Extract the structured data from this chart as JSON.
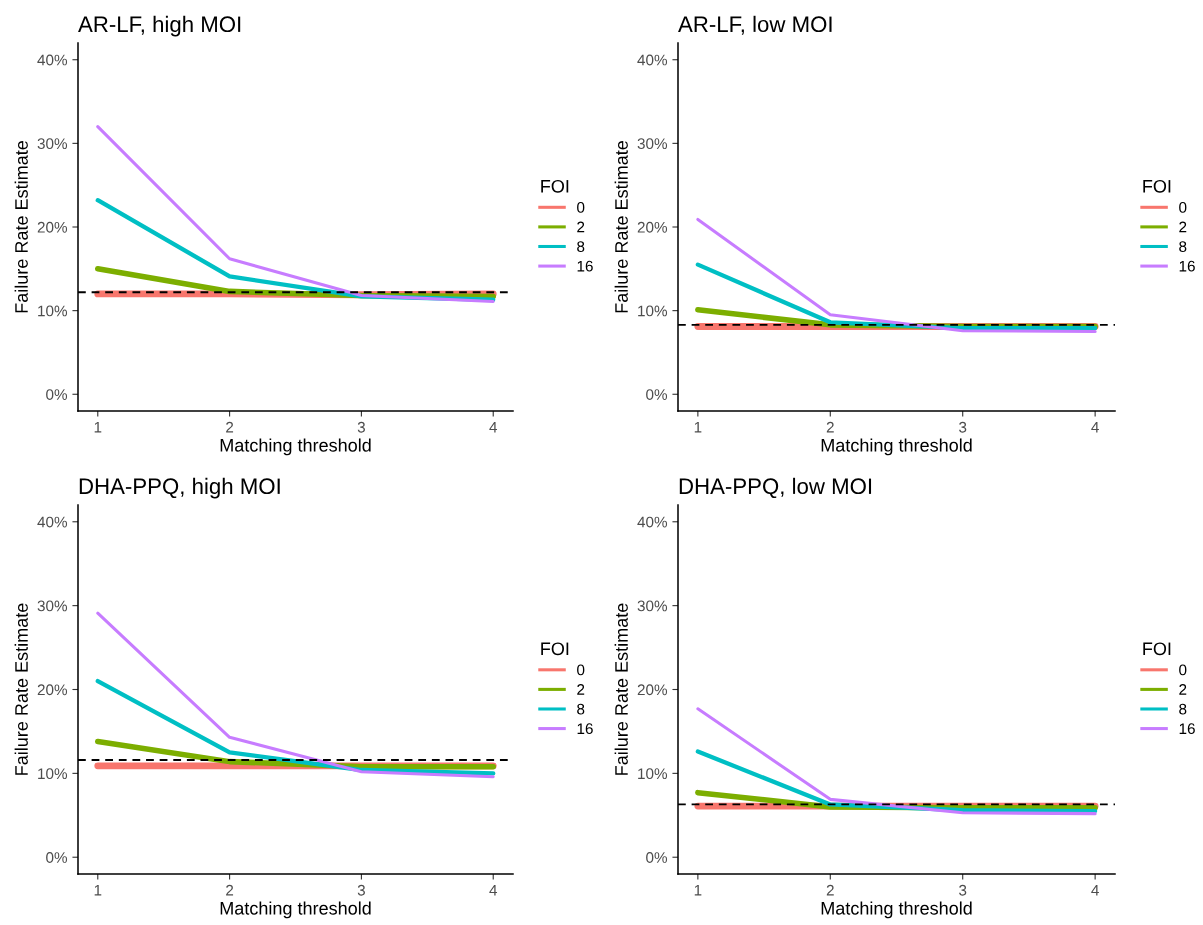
{
  "chart_data": [
    {
      "type": "line",
      "title": "AR-LF, high MOI",
      "xlabel": "Matching threshold",
      "ylabel": "Failure Rate Estimate",
      "legend_title": "FOI",
      "legend": "right",
      "grid": false,
      "x": [
        1,
        2,
        3,
        4
      ],
      "xlim": [
        0.85,
        4.15
      ],
      "xticks": [
        1,
        2,
        3,
        4
      ],
      "ylim": [
        -2,
        42
      ],
      "yticks": [
        {
          "value": 0,
          "label": "0%"
        },
        {
          "value": 10,
          "label": "10%"
        },
        {
          "value": 20,
          "label": "20%"
        },
        {
          "value": 30,
          "label": "30%"
        },
        {
          "value": 40,
          "label": "40%"
        }
      ],
      "series": [
        {
          "name": "0",
          "color": "#f8766d",
          "values": [
            12.0,
            12.0,
            11.9,
            12.0
          ]
        },
        {
          "name": "2",
          "color": "#7cae00",
          "values": [
            15.0,
            12.3,
            11.8,
            11.7
          ]
        },
        {
          "name": "8",
          "color": "#00bfc4",
          "values": [
            23.2,
            14.1,
            11.7,
            11.3
          ]
        },
        {
          "name": "16",
          "color": "#c77cff",
          "values": [
            32.0,
            16.2,
            11.8,
            11.1
          ]
        }
      ],
      "ref_lines": [
        {
          "axis": "y",
          "value": 12.2,
          "color": "#000000",
          "line_style": "dashed"
        }
      ]
    },
    {
      "type": "line",
      "title": "AR-LF, low MOI",
      "xlabel": "Matching threshold",
      "ylabel": "Failure Rate Estimate",
      "legend_title": "FOI",
      "legend": "right",
      "grid": false,
      "x": [
        1,
        2,
        3,
        4
      ],
      "xlim": [
        0.85,
        4.15
      ],
      "xticks": [
        1,
        2,
        3,
        4
      ],
      "ylim": [
        -2,
        42
      ],
      "yticks": [
        {
          "value": 0,
          "label": "0%"
        },
        {
          "value": 10,
          "label": "10%"
        },
        {
          "value": 20,
          "label": "20%"
        },
        {
          "value": 30,
          "label": "30%"
        },
        {
          "value": 40,
          "label": "40%"
        }
      ],
      "series": [
        {
          "name": "0",
          "color": "#f8766d",
          "values": [
            8.1,
            8.1,
            8.1,
            8.1
          ]
        },
        {
          "name": "2",
          "color": "#7cae00",
          "values": [
            10.1,
            8.3,
            8.1,
            8.1
          ]
        },
        {
          "name": "8",
          "color": "#00bfc4",
          "values": [
            15.5,
            8.6,
            7.9,
            7.9
          ]
        },
        {
          "name": "16",
          "color": "#c77cff",
          "values": [
            20.9,
            9.5,
            7.6,
            7.5
          ]
        }
      ],
      "ref_lines": [
        {
          "axis": "y",
          "value": 8.3,
          "color": "#000000",
          "line_style": "dashed"
        }
      ]
    },
    {
      "type": "line",
      "title": "DHA-PPQ, high MOI",
      "xlabel": "Matching threshold",
      "ylabel": "Failure Rate Estimate",
      "legend_title": "FOI",
      "legend": "right",
      "grid": false,
      "x": [
        1,
        2,
        3,
        4
      ],
      "xlim": [
        0.85,
        4.15
      ],
      "xticks": [
        1,
        2,
        3,
        4
      ],
      "ylim": [
        -2,
        42
      ],
      "yticks": [
        {
          "value": 0,
          "label": "0%"
        },
        {
          "value": 10,
          "label": "10%"
        },
        {
          "value": 20,
          "label": "20%"
        },
        {
          "value": 30,
          "label": "30%"
        },
        {
          "value": 40,
          "label": "40%"
        }
      ],
      "series": [
        {
          "name": "0",
          "color": "#f8766d",
          "values": [
            10.9,
            10.9,
            10.9,
            10.9
          ]
        },
        {
          "name": "2",
          "color": "#7cae00",
          "values": [
            13.8,
            11.4,
            10.8,
            10.8
          ]
        },
        {
          "name": "8",
          "color": "#00bfc4",
          "values": [
            21.0,
            12.5,
            10.4,
            10.0
          ]
        },
        {
          "name": "16",
          "color": "#c77cff",
          "values": [
            29.1,
            14.3,
            10.2,
            9.6
          ]
        }
      ],
      "ref_lines": [
        {
          "axis": "y",
          "value": 11.6,
          "color": "#000000",
          "line_style": "dashed"
        }
      ]
    },
    {
      "type": "line",
      "title": "DHA-PPQ, low MOI",
      "xlabel": "Matching threshold",
      "ylabel": "Failure Rate Estimate",
      "legend_title": "FOI",
      "legend": "right",
      "grid": false,
      "x": [
        1,
        2,
        3,
        4
      ],
      "xlim": [
        0.85,
        4.15
      ],
      "xticks": [
        1,
        2,
        3,
        4
      ],
      "ylim": [
        -2,
        42
      ],
      "yticks": [
        {
          "value": 0,
          "label": "0%"
        },
        {
          "value": 10,
          "label": "10%"
        },
        {
          "value": 20,
          "label": "20%"
        },
        {
          "value": 30,
          "label": "30%"
        },
        {
          "value": 40,
          "label": "40%"
        }
      ],
      "series": [
        {
          "name": "0",
          "color": "#f8766d",
          "values": [
            6.1,
            6.1,
            6.1,
            6.1
          ]
        },
        {
          "name": "2",
          "color": "#7cae00",
          "values": [
            7.7,
            6.0,
            5.9,
            5.9
          ]
        },
        {
          "name": "8",
          "color": "#00bfc4",
          "values": [
            12.6,
            6.3,
            5.6,
            5.5
          ]
        },
        {
          "name": "16",
          "color": "#c77cff",
          "values": [
            17.7,
            6.9,
            5.3,
            5.2
          ]
        }
      ],
      "ref_lines": [
        {
          "axis": "y",
          "value": 6.3,
          "color": "#000000",
          "line_style": "dashed"
        }
      ]
    }
  ]
}
